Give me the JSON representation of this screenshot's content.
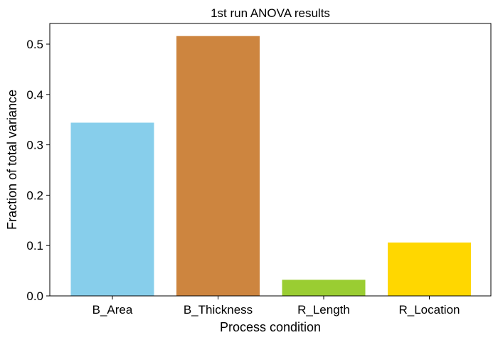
{
  "chart_data": {
    "type": "bar",
    "title": "1st run ANOVA results",
    "xlabel": "Process condition",
    "ylabel": "Fraction of total variance",
    "categories": [
      "B_Area",
      "B_Thickness",
      "R_Length",
      "R_Location"
    ],
    "values": [
      0.344,
      0.516,
      0.032,
      0.106
    ],
    "colors": [
      "#87ceeb",
      "#cd853f",
      "#9acd32",
      "#ffd700"
    ],
    "ylim": [
      0,
      0.541
    ],
    "yticks": [
      0.0,
      0.1,
      0.2,
      0.3,
      0.4,
      0.5
    ],
    "ytick_labels": [
      "0.0",
      "0.1",
      "0.2",
      "0.3",
      "0.4",
      "0.5"
    ],
    "grid": false,
    "legend": "none"
  }
}
